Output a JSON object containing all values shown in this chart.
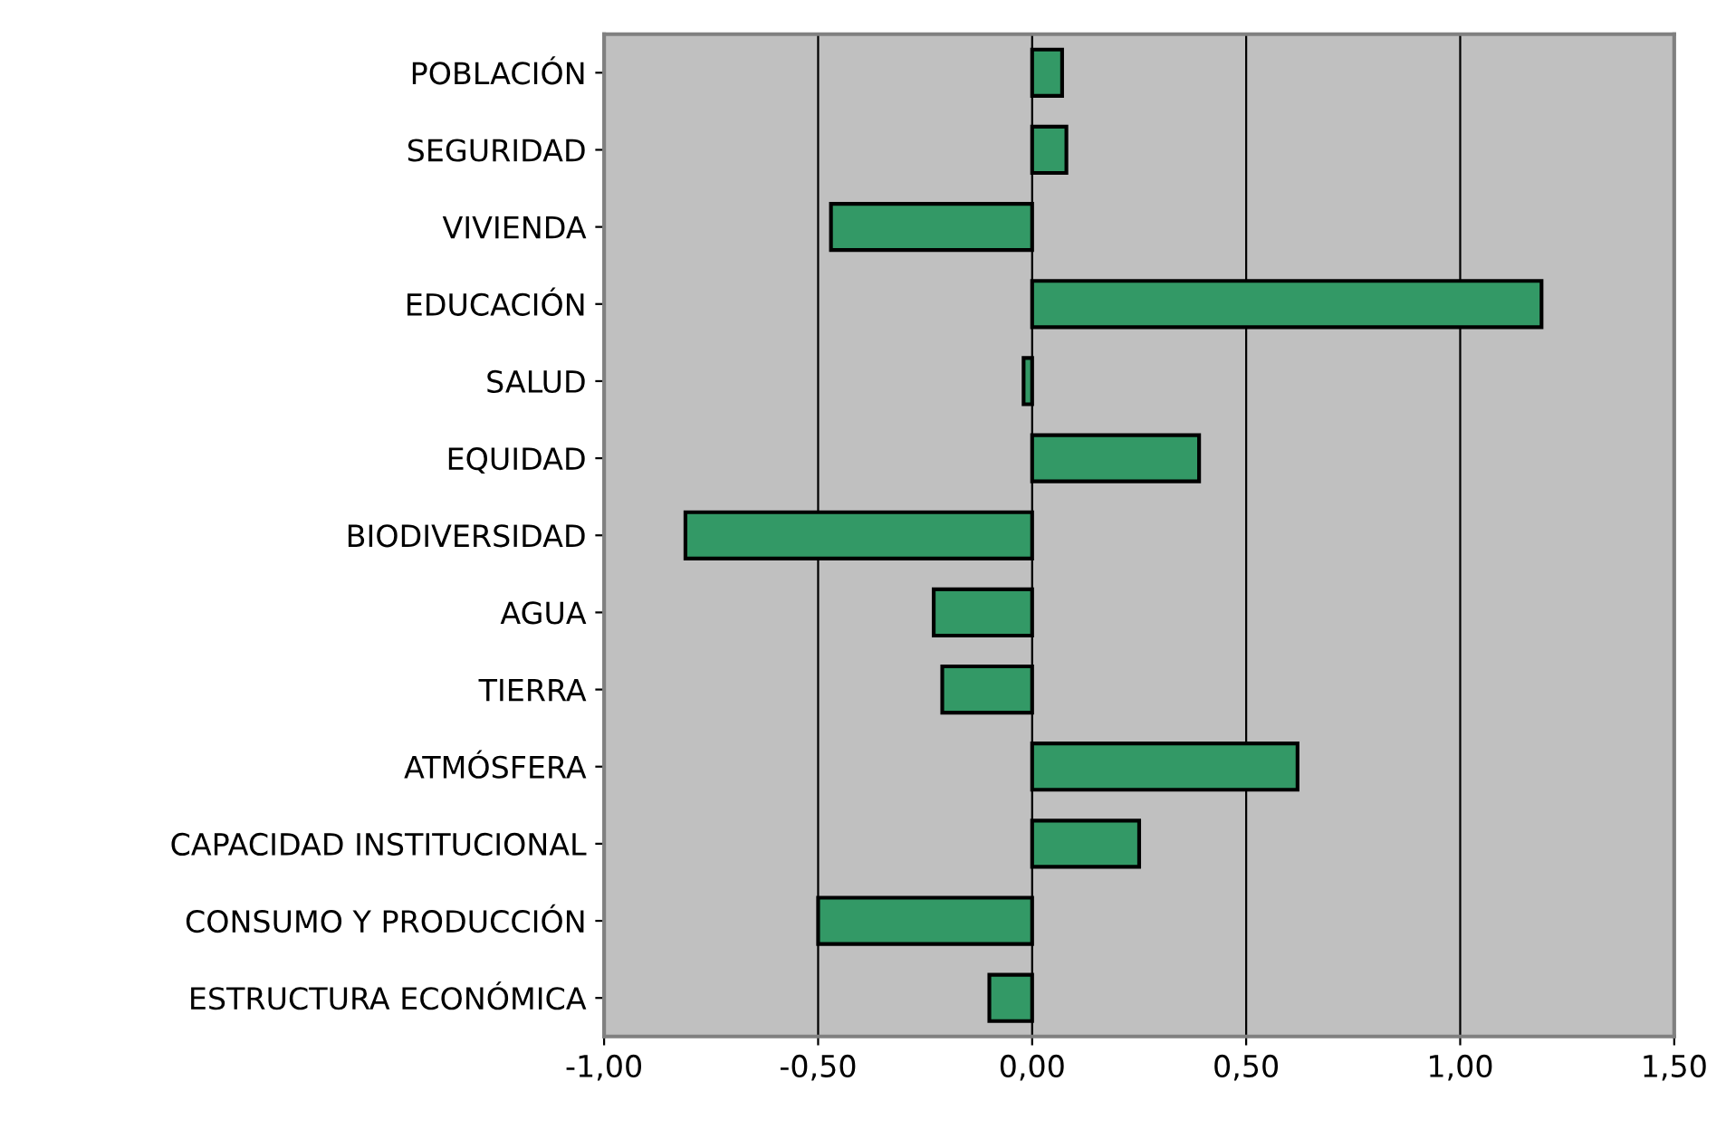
{
  "chart_data": {
    "type": "bar",
    "orientation": "horizontal",
    "categories": [
      "POBLACIÓN",
      "SEGURIDAD",
      "VIVIENDA",
      "EDUCACIÓN",
      "SALUD",
      "EQUIDAD",
      "BIODIVERSIDAD",
      "AGUA",
      "TIERRA",
      "ATMÓSFERA",
      "CAPACIDAD INSTITUCIONAL",
      "CONSUMO Y PRODUCCIÓN",
      "ESTRUCTURA ECONÓMICA"
    ],
    "values": [
      0.07,
      0.08,
      -0.47,
      1.19,
      -0.02,
      0.39,
      -0.81,
      -0.23,
      -0.21,
      0.62,
      0.25,
      -0.5,
      -0.1
    ],
    "color": "#339966",
    "xlim": [
      -1.0,
      1.5
    ],
    "xticks": [
      {
        "value": -1.0,
        "label": "-1,00"
      },
      {
        "value": -0.5,
        "label": "-0,50"
      },
      {
        "value": 0.0,
        "label": "0,00"
      },
      {
        "value": 0.5,
        "label": "0,50"
      },
      {
        "value": 1.0,
        "label": "1,00"
      },
      {
        "value": 1.5,
        "label": "1,50"
      }
    ],
    "grid": "x",
    "legend": false
  }
}
